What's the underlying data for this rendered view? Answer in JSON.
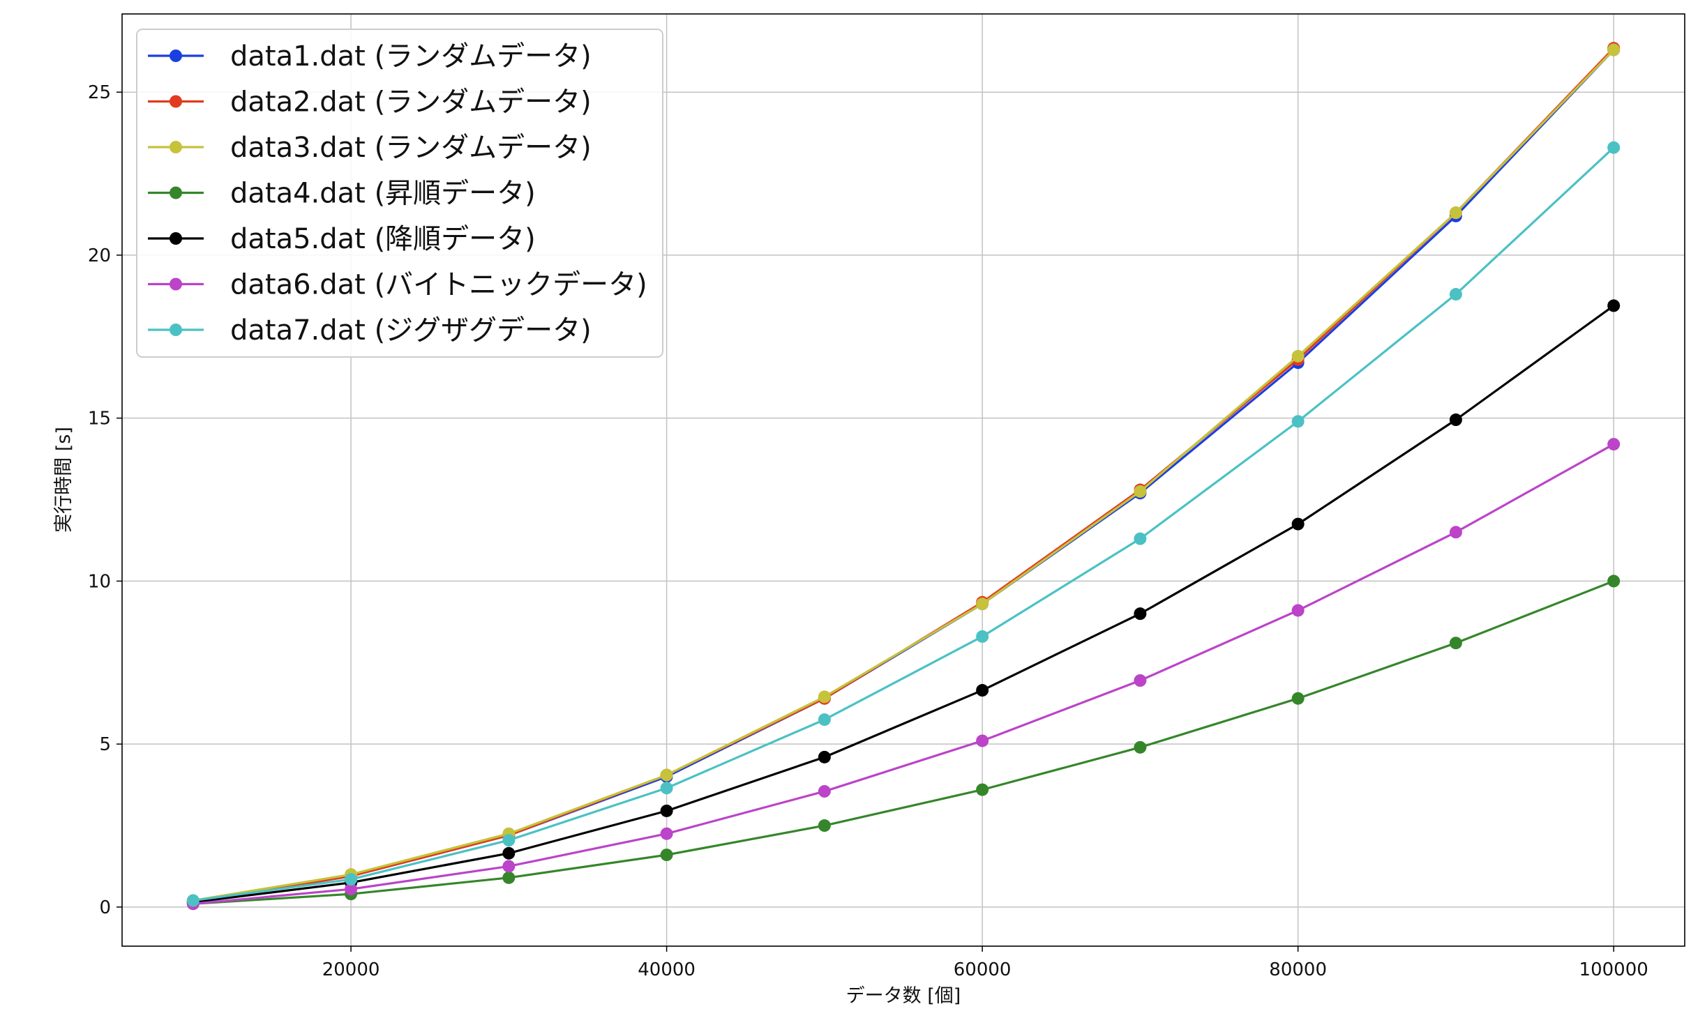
{
  "chart_data": {
    "type": "line",
    "title": "",
    "xlabel": "データ数 [個]",
    "ylabel": "実行時間 [s]",
    "x": [
      10000,
      20000,
      30000,
      40000,
      50000,
      60000,
      70000,
      80000,
      90000,
      100000
    ],
    "xlim": [
      5500,
      104500
    ],
    "ylim": [
      -1.2,
      27.4
    ],
    "xticks": [
      20000,
      40000,
      60000,
      80000,
      100000
    ],
    "yticks": [
      0,
      5,
      10,
      15,
      20,
      25
    ],
    "grid": true,
    "legend_position": "top-left",
    "series": [
      {
        "name": "data1.dat (ランダムデータ)",
        "color": "#1a3fe0",
        "values": [
          0.15,
          0.95,
          2.2,
          4.0,
          6.4,
          9.3,
          12.7,
          16.7,
          21.2,
          26.3
        ]
      },
      {
        "name": "data2.dat (ランダムデータ)",
        "color": "#e23a1f",
        "values": [
          0.15,
          0.95,
          2.2,
          4.05,
          6.4,
          9.35,
          12.8,
          16.8,
          21.3,
          26.35
        ]
      },
      {
        "name": "data3.dat (ランダムデータ)",
        "color": "#c6c23a",
        "values": [
          0.2,
          1.0,
          2.25,
          4.05,
          6.45,
          9.3,
          12.75,
          16.9,
          21.3,
          26.3
        ]
      },
      {
        "name": "data4.dat (昇順データ)",
        "color": "#35862a",
        "values": [
          0.1,
          0.4,
          0.9,
          1.6,
          2.5,
          3.6,
          4.9,
          6.4,
          8.1,
          10.0
        ]
      },
      {
        "name": "data5.dat (降順データ)",
        "color": "#000000",
        "values": [
          0.15,
          0.75,
          1.65,
          2.95,
          4.6,
          6.65,
          9.0,
          11.75,
          14.95,
          18.45
        ]
      },
      {
        "name": "data6.dat (バイトニックデータ)",
        "color": "#bb44c8",
        "values": [
          0.1,
          0.55,
          1.25,
          2.25,
          3.55,
          5.1,
          6.95,
          9.1,
          11.5,
          14.2
        ]
      },
      {
        "name": "data7.dat (ジグザグデータ)",
        "color": "#4bc1c4",
        "values": [
          0.2,
          0.85,
          2.05,
          3.65,
          5.75,
          8.3,
          11.3,
          14.9,
          18.8,
          23.3
        ]
      }
    ]
  }
}
